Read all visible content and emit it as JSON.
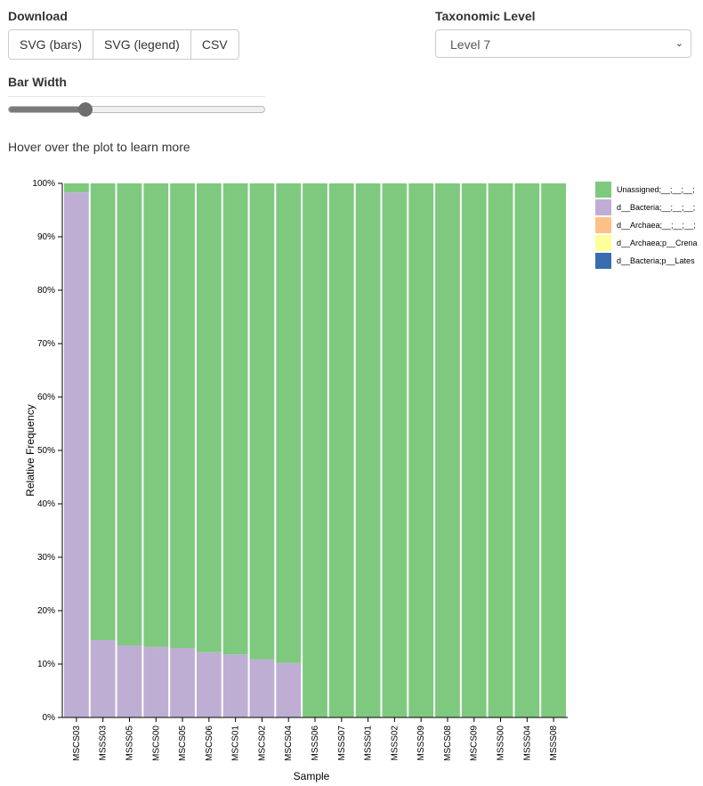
{
  "download": {
    "label": "Download",
    "buttons": [
      "SVG (bars)",
      "SVG (legend)",
      "CSV"
    ]
  },
  "taxonomic": {
    "label": "Taxonomic Level",
    "selected": "Level 7"
  },
  "bar_width": {
    "label": "Bar Width",
    "value_fraction": 0.3
  },
  "hint": "Hover over the plot to learn more",
  "colors": {
    "unassigned": "#7fc97f",
    "bacteria": "#beaed4",
    "archaea": "#fdc086",
    "archaea_crena": "#ffff99",
    "bacteria_lates": "#386cb0"
  },
  "chart_data": {
    "type": "bar",
    "stacked": true,
    "xlabel": "Sample",
    "ylabel": "Relative Frequency",
    "ylim": [
      0,
      100
    ],
    "y_ticks": [
      "0%",
      "10%",
      "20%",
      "30%",
      "40%",
      "50%",
      "60%",
      "70%",
      "80%",
      "90%",
      "100%"
    ],
    "categories": [
      "MSCS03",
      "MSSS03",
      "MSSS05",
      "MSCS00",
      "MSCS05",
      "MSCS06",
      "MSCS01",
      "MSCS02",
      "MSCS04",
      "MSSS06",
      "MSSS07",
      "MSSS01",
      "MSSS02",
      "MSSS09",
      "MSCS08",
      "MSCS09",
      "MSSS00",
      "MSSS04",
      "MSSS08"
    ],
    "series": [
      {
        "name": "d__Bacteria;__;__;__",
        "color": "#beaed4",
        "values": [
          98.3,
          14.5,
          13.5,
          13.2,
          13.0,
          12.2,
          11.8,
          10.9,
          10.2,
          0,
          0,
          0,
          0,
          0,
          0,
          0,
          0,
          0,
          0
        ]
      },
      {
        "name": "Unassigned;__;__;__",
        "color": "#7fc97f",
        "values": [
          1.7,
          85.5,
          86.5,
          86.8,
          87.0,
          87.8,
          88.2,
          89.1,
          89.8,
          100,
          100,
          100,
          100,
          100,
          100,
          100,
          100,
          100,
          100
        ]
      }
    ],
    "legend": {
      "placement": "right",
      "entries": [
        {
          "label": "Unassigned;__;__;__;",
          "color": "#7fc97f"
        },
        {
          "label": "d__Bacteria;__;__;__;",
          "color": "#beaed4"
        },
        {
          "label": "d__Archaea;__;__;__;",
          "color": "#fdc086"
        },
        {
          "label": "d__Archaea;p__Crena",
          "color": "#ffff99"
        },
        {
          "label": "d__Bacteria;p__Lates",
          "color": "#386cb0"
        }
      ]
    }
  }
}
